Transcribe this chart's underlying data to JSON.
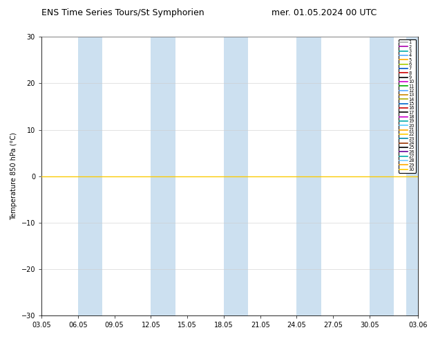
{
  "title_left": "ENS Time Series Tours/St Symphorien",
  "title_right": "mer. 01.05.2024 00 UTC",
  "ylabel": "Temperature 850 hPa (°C)",
  "ylim": [
    -30,
    30
  ],
  "yticks": [
    -30,
    -20,
    -10,
    0,
    10,
    20,
    30
  ],
  "x_tick_labels": [
    "03.05",
    "06.05",
    "09.05",
    "12.05",
    "15.05",
    "18.05",
    "21.05",
    "24.05",
    "27.05",
    "30.05",
    "03.06"
  ],
  "x_tick_positions": [
    0,
    3,
    6,
    9,
    12,
    15,
    18,
    21,
    24,
    27,
    31
  ],
  "num_members": 30,
  "member_colors": [
    "#aaaaaa",
    "#aa00aa",
    "#00aaaa",
    "#55aaff",
    "#ffaa00",
    "#aacc00",
    "#0055cc",
    "#cc0000",
    "#000000",
    "#cc00cc",
    "#00aa00",
    "#55aaff",
    "#cc8800",
    "#aaaa00",
    "#0066cc",
    "#cc0000",
    "#000000",
    "#cc00cc",
    "#00aaaa",
    "#55ccff",
    "#ffaa00",
    "#ffcc00",
    "#0088aa",
    "#993300",
    "#000000",
    "#660099",
    "#00aaaa",
    "#77ccff",
    "#ffaa00",
    "#ffcc00"
  ],
  "zero_line_color": "#ffdd00",
  "shade_color": "#cce0f0",
  "shade_alpha": 1.0,
  "shade_x_pairs": [
    [
      3,
      5
    ],
    [
      9,
      11
    ],
    [
      15,
      17
    ],
    [
      21,
      23
    ],
    [
      27,
      29
    ],
    [
      30,
      31
    ]
  ],
  "bg_color": "#ffffff",
  "x_min": 0,
  "x_max": 31,
  "title_fontsize": 9,
  "axis_fontsize": 7,
  "legend_fontsize": 4.8
}
